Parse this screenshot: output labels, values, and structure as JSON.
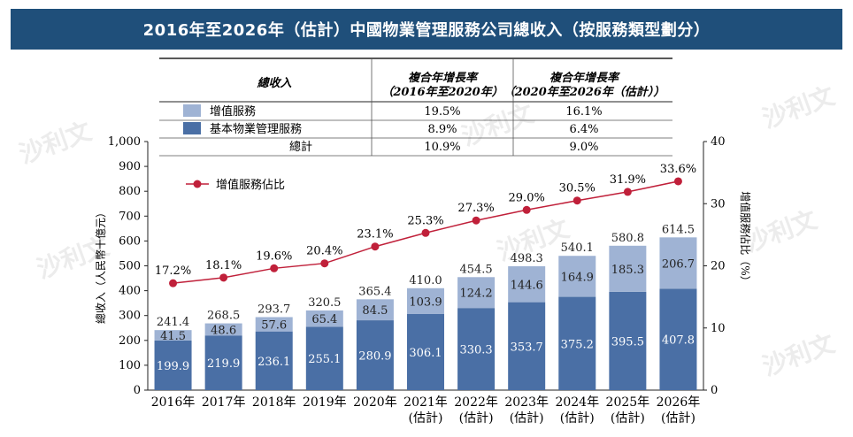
{
  "title": "2016年至2026年（估計）中國物業管理服務公司總收入（按服務類型劃分）",
  "table": {
    "col1_header": "總收入",
    "col2_header_line1": "複合年增長率",
    "col2_header_line2": "（2016年至2020年）",
    "col3_header_line1": "複合年增長率",
    "col3_header_line2": "（2020年至2026年（估計））",
    "rows": [
      {
        "label": "增值服務",
        "swatch": "#9fb3d4",
        "cagr1": "19.5%",
        "cagr2": "16.1%"
      },
      {
        "label": "基本物業管理服務",
        "swatch": "#4a6fa5",
        "cagr1": "8.9%",
        "cagr2": "6.4%"
      },
      {
        "label": "總計",
        "swatch": "",
        "cagr1": "10.9%",
        "cagr2": "9.0%"
      }
    ]
  },
  "watermark": "沙利文",
  "chart_data": {
    "type": "bar",
    "stacked": true,
    "categories": [
      "2016年",
      "2017年",
      "2018年",
      "2019年",
      "2020年",
      "2021年\n(估計)",
      "2022年\n(估計)",
      "2023年\n(估計)",
      "2024年\n(估計)",
      "2025年\n(估計)",
      "2026年\n(估計)"
    ],
    "series": [
      {
        "name": "基本物業管理服務",
        "color": "#4a6fa5",
        "values": [
          199.9,
          219.9,
          236.1,
          255.1,
          280.9,
          306.1,
          330.3,
          353.7,
          375.2,
          395.5,
          407.8
        ]
      },
      {
        "name": "增值服務",
        "color": "#9fb3d4",
        "values": [
          41.5,
          48.6,
          57.6,
          65.4,
          84.5,
          103.9,
          124.2,
          144.6,
          164.9,
          185.3,
          206.7
        ]
      }
    ],
    "totals": [
      "241.4",
      "268.5",
      "293.7",
      "320.5",
      "365.4",
      "410.0",
      "454.5",
      "498.3",
      "540.1",
      "580.8",
      "614.5"
    ],
    "line": {
      "name": "增值服務佔比",
      "color": "#c0203a",
      "values": [
        17.2,
        18.1,
        19.6,
        20.4,
        23.1,
        25.3,
        27.3,
        29.0,
        30.5,
        31.9,
        33.6
      ],
      "labels": [
        "17.2%",
        "18.1%",
        "19.6%",
        "20.4%",
        "23.1%",
        "25.3%",
        "27.3%",
        "29.0%",
        "30.5%",
        "31.9%",
        "33.6%"
      ]
    },
    "ylabel": "總收入（人民幣十億元）",
    "y2label": "增值服務佔比（%）",
    "ylim": [
      0,
      1000
    ],
    "yticks": [
      "0",
      "100",
      "200",
      "300",
      "400",
      "500",
      "600",
      "700",
      "800",
      "900",
      "1,000"
    ],
    "y2lim": [
      0,
      40
    ],
    "y2ticks": [
      "0",
      "10",
      "20",
      "30",
      "40"
    ],
    "legend_position": "top-left"
  }
}
